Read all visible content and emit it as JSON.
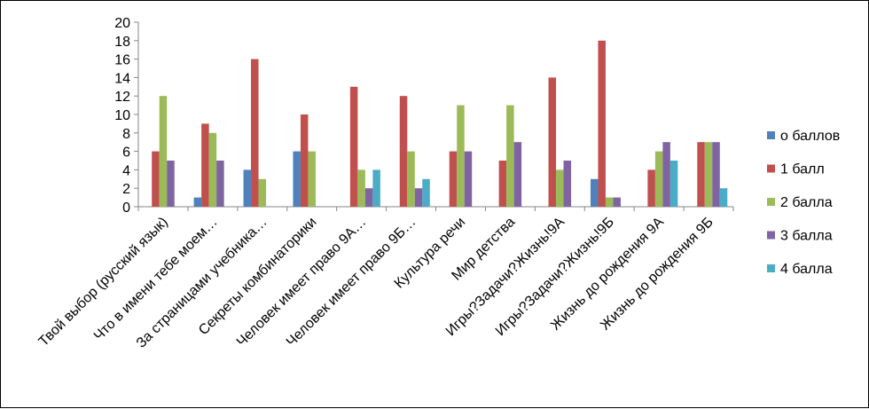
{
  "chart_data": {
    "type": "bar",
    "title": "",
    "xlabel": "",
    "ylabel": "",
    "ylim": [
      0,
      20
    ],
    "yticks": [
      0,
      2,
      4,
      6,
      8,
      10,
      12,
      14,
      16,
      18,
      20
    ],
    "grid": false,
    "legend_position": "right",
    "categories": [
      "Твой выбор (русский язык)",
      "Что в имени тебе моем…",
      "За страницами учебника…",
      "Секреты комбинаторики",
      "Человек имеет право 9А…",
      "Человек имеет право 9Б…",
      "Культура речи",
      "Мир детства",
      "Игры?Задачи?Жизнь!9А",
      "Игры?Задачи?Жизнь!9Б",
      "Жизнь до рождения 9А",
      "Жизнь до рождения 9Б"
    ],
    "series": [
      {
        "name": "о баллов",
        "color": "#4F81BD",
        "values": [
          0,
          1,
          4,
          6,
          0,
          0,
          0,
          0,
          0,
          3,
          0,
          0
        ]
      },
      {
        "name": "1 балл",
        "color": "#C0504D",
        "values": [
          6,
          9,
          16,
          10,
          13,
          12,
          6,
          5,
          14,
          18,
          4,
          7
        ]
      },
      {
        "name": "2 балла",
        "color": "#9BBB59",
        "values": [
          12,
          8,
          3,
          6,
          4,
          6,
          11,
          11,
          4,
          1,
          6,
          7
        ]
      },
      {
        "name": "3 балла",
        "color": "#8064A2",
        "values": [
          5,
          5,
          0,
          0,
          2,
          2,
          6,
          7,
          5,
          1,
          7,
          7
        ]
      },
      {
        "name": "4 балла",
        "color": "#4BACC6",
        "values": [
          0,
          0,
          0,
          0,
          4,
          3,
          0,
          0,
          0,
          0,
          5,
          2
        ]
      }
    ]
  }
}
